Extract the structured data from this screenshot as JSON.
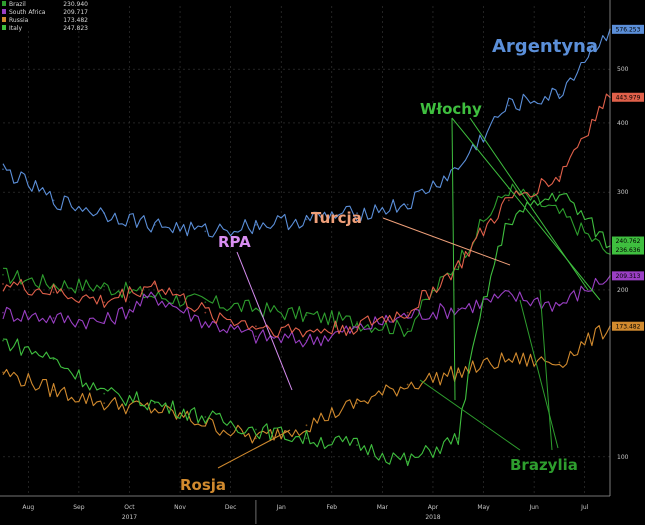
{
  "chart_data": {
    "type": "line",
    "xlabel": "",
    "ylabel": "",
    "yscale": "log",
    "ylim": [
      85,
      650
    ],
    "grid": true,
    "legend_position": "top-left",
    "x_months": [
      "Aug",
      "Sep",
      "Oct",
      "Nov",
      "Dec",
      "Jan",
      "Feb",
      "Mar",
      "Apr",
      "May",
      "Jun",
      "Jul"
    ],
    "x_years": [
      "2017",
      "2018"
    ],
    "y_ticks": [
      100,
      200,
      300,
      400,
      500
    ],
    "x": [
      "Aug",
      "Sep",
      "Oct",
      "Nov",
      "Dec",
      "Jan",
      "Feb",
      "Mar",
      "Apr",
      "May",
      "Jun",
      "Jul",
      "Aug"
    ],
    "series": [
      {
        "name": "Brazil",
        "legend_value": "230.940",
        "end_tag": "",
        "color": "#2e9e2e",
        "values": [
          213,
          205,
          203,
          195,
          190,
          185,
          180,
          175,
          170,
          225,
          305,
          275,
          232
        ]
      },
      {
        "name": "South Africa",
        "legend_value": "209.717",
        "end_tag": "209.313",
        "color": "#9a3fc4",
        "values": [
          182,
          178,
          175,
          195,
          175,
          165,
          162,
          170,
          180,
          185,
          195,
          188,
          212
        ]
      },
      {
        "name": "Russia",
        "legend_value": "173.482",
        "end_tag": "173.482",
        "color": "#d18a2e",
        "values": [
          142,
          132,
          125,
          122,
          115,
          108,
          114,
          125,
          135,
          142,
          150,
          148,
          172
        ]
      },
      {
        "name": "Italy",
        "legend_value": "247.823",
        "end_tag": "236.636",
        "color": "#3fbf3f",
        "values": [
          162,
          150,
          130,
          125,
          118,
          112,
          108,
          105,
          98,
          108,
          268,
          300,
          240
        ]
      },
      {
        "name": "",
        "legend_value": "",
        "end_tag": "576.253",
        "color": "#5b8fd9",
        "values": [
          330,
          290,
          275,
          262,
          255,
          262,
          268,
          275,
          285,
          330,
          430,
          450,
          590
        ]
      },
      {
        "name": "",
        "legend_value": "",
        "end_tag": "443.979",
        "color": "#e0604a",
        "values": [
          205,
          198,
          190,
          205,
          182,
          172,
          168,
          172,
          182,
          220,
          290,
          320,
          445
        ]
      }
    ],
    "extra_tag": "240.762",
    "annotations": [
      {
        "text": "Argentyna",
        "color": "#5b8fd9"
      },
      {
        "text": "Włochy",
        "color": "#3fbf3f"
      },
      {
        "text": "Turcja",
        "color": "#f0a07a"
      },
      {
        "text": "RPA",
        "color": "#d88ef2"
      },
      {
        "text": "Rosja",
        "color": "#d18a2e"
      },
      {
        "text": "Brazylia",
        "color": "#2e9e2e"
      }
    ]
  }
}
